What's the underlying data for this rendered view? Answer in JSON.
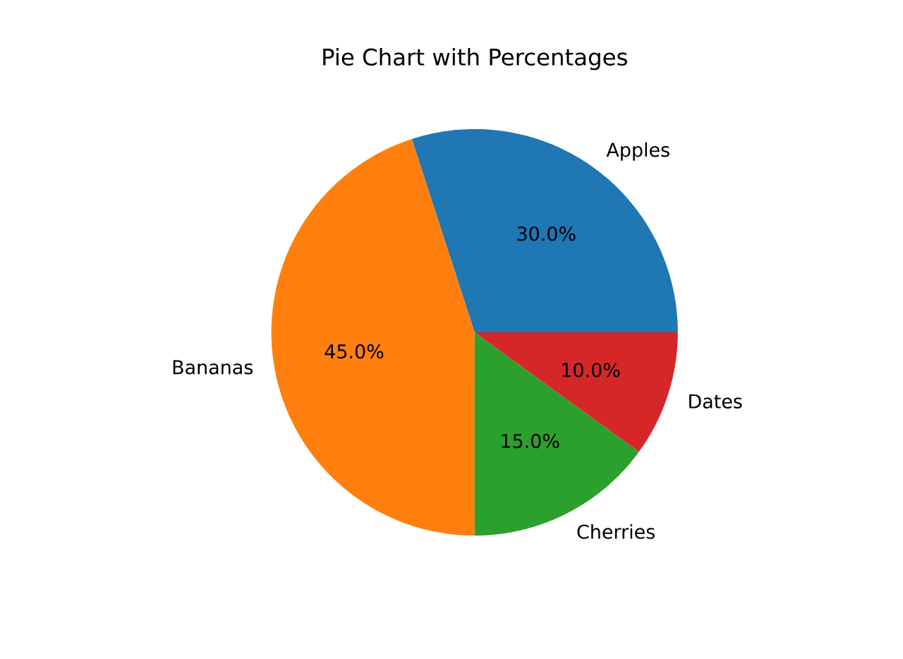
{
  "chart_data": {
    "type": "pie",
    "title": "Pie Chart with Percentages",
    "categories": [
      "Apples",
      "Bananas",
      "Cherries",
      "Dates"
    ],
    "values": [
      30,
      45,
      15,
      10
    ],
    "colors": [
      "#1f77b4",
      "#ff7f0e",
      "#2ca02c",
      "#d62728"
    ],
    "value_labels": [
      "30.0%",
      "45.0%",
      "15.0%",
      "10.0%"
    ]
  }
}
